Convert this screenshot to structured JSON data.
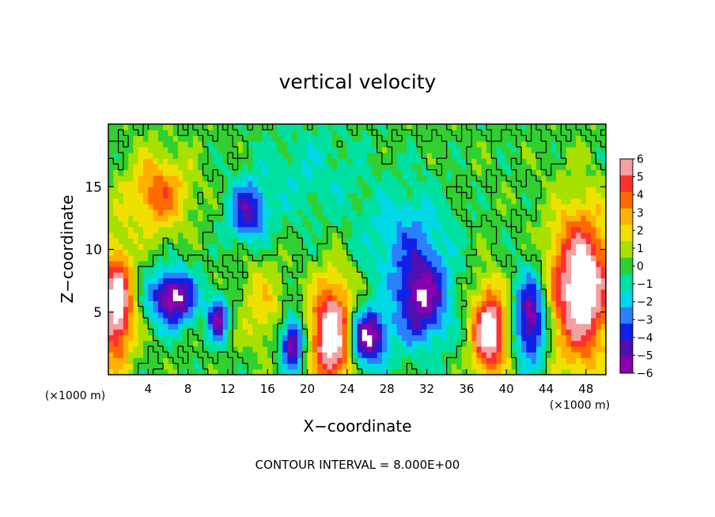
{
  "chart_data": {
    "type": "heatmap",
    "title": "vertical velocity",
    "xlabel": "X−coordinate",
    "ylabel": "Z−coordinate",
    "x_unit_label_left": "(×1000 m)",
    "x_unit_label_right": "(×1000 m)",
    "footer": "CONTOUR INTERVAL = 8.000E+00",
    "xlim": [
      0,
      50
    ],
    "ylim": [
      0,
      20
    ],
    "x_ticks": [
      4,
      8,
      12,
      16,
      20,
      24,
      28,
      32,
      36,
      40,
      44,
      48
    ],
    "x_tick_labels": [
      "4",
      "8",
      "12",
      "16",
      "20",
      "24",
      "28",
      "32",
      "36",
      "40",
      "44",
      "48"
    ],
    "y_ticks": [
      5,
      10,
      15
    ],
    "y_tick_labels": [
      "5",
      "10",
      "15"
    ],
    "colorbar": {
      "min": -6,
      "max": 6,
      "levels": [
        6,
        5,
        4,
        3,
        2,
        1,
        0,
        -1,
        -2,
        -3,
        -4,
        -5,
        -6
      ],
      "labels": [
        "6",
        "5",
        "4",
        "3",
        "2",
        "1",
        "0",
        "−1",
        "−2",
        "−3",
        "−4",
        "−5",
        "−6"
      ],
      "colors": [
        "#f4a0a0",
        "#ff3030",
        "#ff6a00",
        "#ffb000",
        "#f0e000",
        "#a8e000",
        "#30d030",
        "#00e0a0",
        "#00d8e8",
        "#2a80ff",
        "#1020e8",
        "#5010b0",
        "#8a00b0"
      ]
    },
    "features": [
      {
        "x": 0.8,
        "z": 5.5,
        "w": 7.0,
        "sx": 1.2,
        "sz": 3.2
      },
      {
        "x": 5.0,
        "z": 14.5,
        "w": 3.8,
        "sx": 2.2,
        "sz": 2.2
      },
      {
        "x": 6.5,
        "z": 6.2,
        "w": -6.5,
        "sx": 1.6,
        "sz": 1.5
      },
      {
        "x": 11.0,
        "z": 4.5,
        "w": -5.5,
        "sx": 0.7,
        "sz": 1.2
      },
      {
        "x": 14.0,
        "z": 13.0,
        "w": -4.5,
        "sx": 1.3,
        "sz": 1.6
      },
      {
        "x": 15.5,
        "z": 5.5,
        "w": 2.0,
        "sx": 1.5,
        "sz": 2.5
      },
      {
        "x": 18.5,
        "z": 2.5,
        "w": -6.0,
        "sx": 0.8,
        "sz": 1.5
      },
      {
        "x": 22.5,
        "z": 3.2,
        "w": 7.5,
        "sx": 1.5,
        "sz": 3.0
      },
      {
        "x": 26.0,
        "z": 3.0,
        "w": -6.5,
        "sx": 1.4,
        "sz": 1.6
      },
      {
        "x": 31.5,
        "z": 6.0,
        "w": -5.5,
        "sx": 1.8,
        "sz": 2.5
      },
      {
        "x": 38.3,
        "z": 3.5,
        "w": 7.2,
        "sx": 1.2,
        "sz": 2.5
      },
      {
        "x": 42.5,
        "z": 4.5,
        "w": -6.0,
        "sx": 1.1,
        "sz": 2.5
      },
      {
        "x": 47.5,
        "z": 7.0,
        "w": 7.5,
        "sx": 2.2,
        "sz": 4.2
      },
      {
        "x": 30.0,
        "z": 11.0,
        "w": -2.2,
        "sx": 3.0,
        "sz": 3.0
      },
      {
        "x": 20.0,
        "z": 16.0,
        "w": -1.2,
        "sx": 4.0,
        "sz": 3.0
      }
    ]
  }
}
